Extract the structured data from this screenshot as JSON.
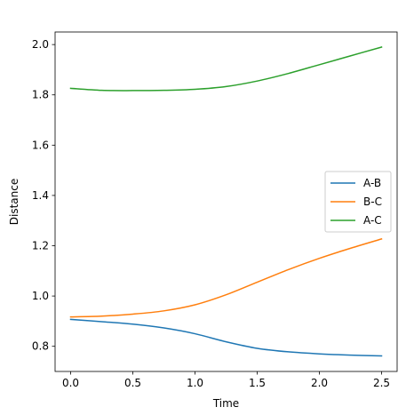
{
  "chart_data": {
    "type": "line",
    "title": "",
    "xlabel": "Time",
    "ylabel": "Distance",
    "xlim": [
      -0.125,
      2.625
    ],
    "ylim": [
      0.7,
      2.05
    ],
    "xticks": [
      0.0,
      0.5,
      1.0,
      1.5,
      2.0,
      2.5
    ],
    "xtick_labels": [
      "0.0",
      "0.5",
      "1.0",
      "1.5",
      "2.0",
      "2.5"
    ],
    "yticks": [
      0.8,
      1.0,
      1.2,
      1.4,
      1.6,
      1.8,
      2.0
    ],
    "ytick_labels": [
      "0.8",
      "1.0",
      "1.2",
      "1.4",
      "1.6",
      "1.8",
      "2.0"
    ],
    "grid": false,
    "legend_position": "center-right",
    "x": [
      0.0,
      0.25,
      0.5,
      0.75,
      1.0,
      1.25,
      1.5,
      1.75,
      2.0,
      2.25,
      2.5
    ],
    "series": [
      {
        "name": "A-B",
        "color": "#1f77b4",
        "values": [
          0.907,
          0.898,
          0.888,
          0.873,
          0.85,
          0.818,
          0.792,
          0.778,
          0.77,
          0.765,
          0.762
        ]
      },
      {
        "name": "B-C",
        "color": "#ff7f0e",
        "values": [
          0.917,
          0.92,
          0.928,
          0.941,
          0.965,
          1.005,
          1.055,
          1.105,
          1.15,
          1.19,
          1.227
        ]
      },
      {
        "name": "A-C",
        "color": "#2ca02c",
        "values": [
          1.826,
          1.818,
          1.817,
          1.818,
          1.822,
          1.833,
          1.855,
          1.885,
          1.92,
          1.955,
          1.99
        ]
      }
    ]
  }
}
